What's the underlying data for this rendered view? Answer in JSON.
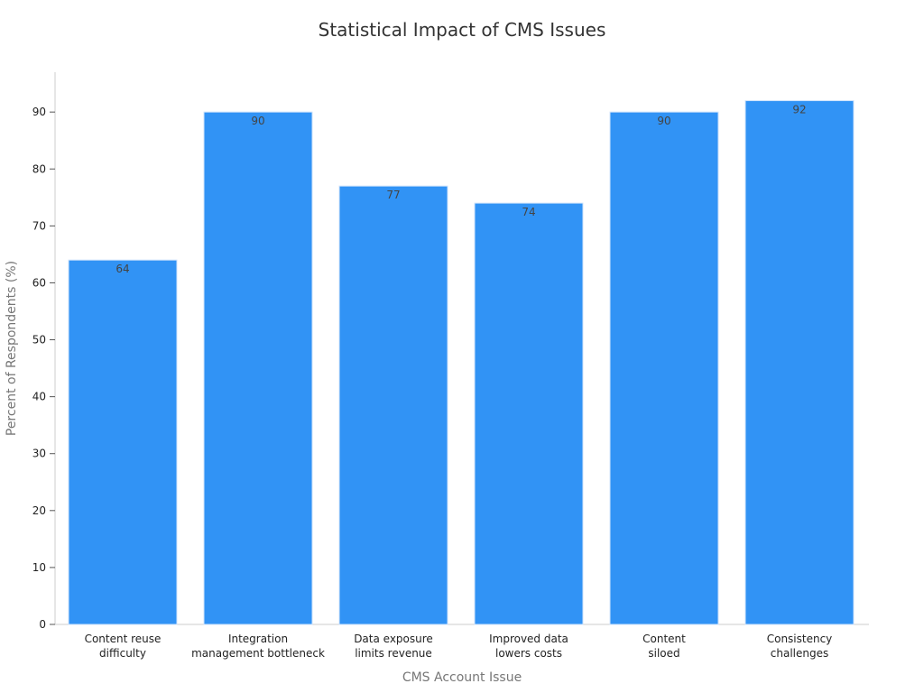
{
  "chart_data": {
    "type": "bar",
    "title": "Statistical Impact of CMS Issues",
    "xlabel": "CMS Account Issue",
    "ylabel": "Percent of Respondents (%)",
    "categories": [
      [
        "Content reuse",
        "difficulty"
      ],
      [
        "Integration",
        "management bottleneck"
      ],
      [
        "Data exposure",
        "limits revenue"
      ],
      [
        "Improved data",
        "lowers costs"
      ],
      [
        "Content",
        "siloed"
      ],
      [
        "Consistency",
        "challenges"
      ]
    ],
    "values": [
      64,
      90,
      77,
      74,
      90,
      92
    ],
    "data_labels": [
      "64",
      "90",
      "77",
      "74",
      "90",
      "92"
    ],
    "ylim": [
      0,
      97
    ],
    "yticks": [
      0,
      10,
      20,
      30,
      40,
      50,
      60,
      70,
      80,
      90
    ],
    "grid": false,
    "legend": "none",
    "bar_color": "#3193f5"
  }
}
